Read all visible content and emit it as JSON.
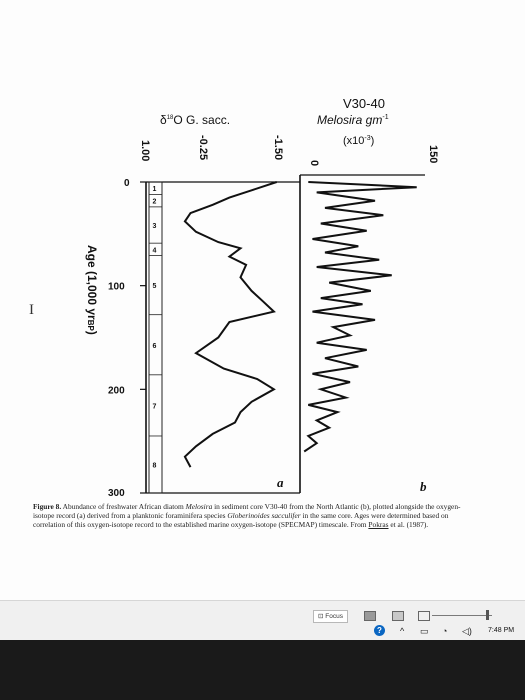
{
  "figure": {
    "core_label": "V30-40",
    "melosira_label": "Melosira gm",
    "melosira_exp": "-1",
    "melosira_scale": "(x10",
    "melosira_scale_exp": "-3",
    "melosira_scale_close": ")",
    "o18_label": "δ",
    "o18_sup": "18",
    "o18_rest": "O G. sacc.",
    "tick_150": "150",
    "tick_0_melosira": "0",
    "tick_neg150": "-1.50",
    "tick_neg025": "-0.25",
    "tick_100": "1.00",
    "age_axis_label": "Age (1,000 yr",
    "age_axis_sub": "BP",
    "age_axis_close": ")",
    "age_ticks": [
      "0",
      "100",
      "200",
      "300"
    ],
    "stages": [
      "1",
      "2",
      "3",
      "4",
      "5",
      "6",
      "7",
      "8"
    ],
    "panel_a": "a",
    "panel_b": "b"
  },
  "chart_data": [
    {
      "type": "line",
      "title": "δ18O G. sacc.",
      "xlabel": "δ18O G. sacc.",
      "ylabel": "Age (1,000 yr BP)",
      "x_ticks": [
        "1.00",
        "-0.25",
        "-1.50"
      ],
      "y_ticks": [
        0,
        100,
        200,
        300
      ],
      "ylim": [
        0,
        300
      ],
      "age": [
        0,
        8,
        15,
        22,
        30,
        38,
        48,
        58,
        64,
        72,
        80,
        92,
        105,
        115,
        125,
        135,
        150,
        165,
        180,
        190,
        200,
        212,
        222,
        232,
        243,
        255,
        265,
        275
      ],
      "values": [
        -1.35,
        -0.9,
        -0.5,
        -0.2,
        0.2,
        0.3,
        0.1,
        -0.3,
        -0.7,
        -0.5,
        -0.8,
        -0.7,
        -0.9,
        -1.1,
        -1.3,
        -0.5,
        -0.3,
        0.1,
        -0.4,
        -1.0,
        -1.3,
        -0.9,
        -0.7,
        -0.6,
        -0.2,
        0.1,
        0.3,
        0.2
      ]
    },
    {
      "type": "line",
      "title": "V30-40 Melosira gm-1 (x10-3)",
      "xlabel": "Melosira gm-1 (x10-3)",
      "ylabel": "Age (1,000 yr BP)",
      "x_ticks": [
        "0",
        "150"
      ],
      "xlim": [
        0,
        150
      ],
      "ylim": [
        0,
        300
      ],
      "age": [
        0,
        5,
        10,
        18,
        25,
        32,
        40,
        47,
        55,
        62,
        68,
        75,
        82,
        90,
        97,
        105,
        112,
        118,
        125,
        133,
        140,
        148,
        155,
        162,
        170,
        178,
        185,
        193,
        200,
        208,
        215,
        222,
        230,
        237,
        245,
        252,
        260
      ],
      "values": [
        10,
        140,
        20,
        90,
        30,
        100,
        25,
        80,
        15,
        70,
        30,
        95,
        20,
        110,
        35,
        85,
        25,
        75,
        15,
        90,
        40,
        60,
        20,
        80,
        30,
        70,
        15,
        60,
        25,
        55,
        10,
        45,
        20,
        35,
        10,
        20,
        5
      ]
    }
  ],
  "caption": {
    "fig_label": "Figure 8.",
    "t1": " Abundance of freshwater African diatom ",
    "t2": "Melosira",
    "t3": " in sediment core V30-40 from the North Atlantic (b), plotted alongside the oxygen-isotope record (a) derived from a planktonic foraminifera species ",
    "t4": "Globerinoides sacculifer",
    "t5": " in the same core. Ages were determined based on correlation of this oxygen-isotope record to the established marine oxygen-isotope (SPECMAP) timescale. From ",
    "t6": "Pokras",
    "t7": " et al. (1987)."
  },
  "cursor_glyph": "I",
  "statusbar": {
    "focus_label": "Focus",
    "time": "7:48 PM"
  }
}
